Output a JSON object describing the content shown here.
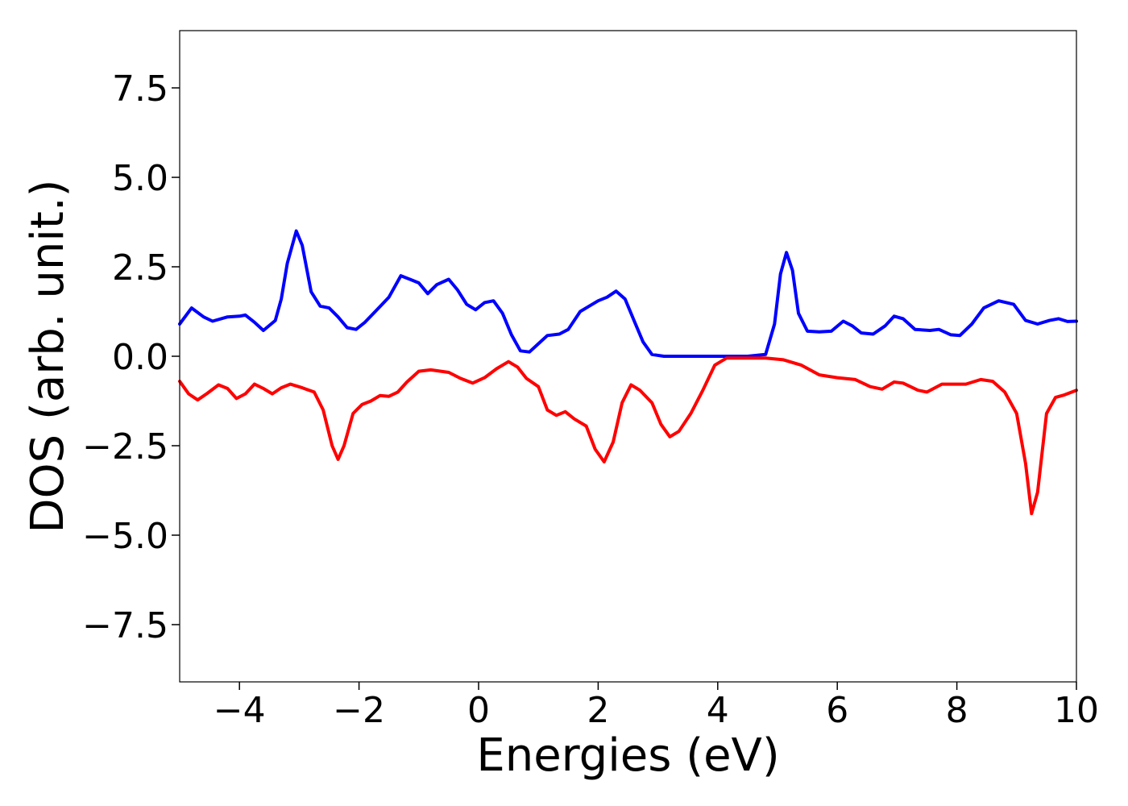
{
  "chart_data": {
    "type": "line",
    "title": "",
    "xlabel": "Energies (eV)",
    "ylabel": "DOS (arb. unit.)",
    "xlim": [
      -5,
      10
    ],
    "ylim": [
      -9.1,
      9.1
    ],
    "xticks": [
      -4,
      -2,
      0,
      2,
      4,
      6,
      8,
      10
    ],
    "xtick_labels": [
      "−4",
      "−2",
      "0",
      "2",
      "4",
      "6",
      "8",
      "10"
    ],
    "yticks": [
      7.5,
      5.0,
      2.5,
      0.0,
      -2.5,
      -5.0,
      -7.5
    ],
    "ytick_labels": [
      "7.5",
      "5.0",
      "2.5",
      "0.0",
      "−2.5",
      "−5.0",
      "−7.5"
    ],
    "grid": false,
    "legend": "none",
    "series": [
      {
        "color": "#0000ff",
        "points": [
          [
            -5.0,
            0.9
          ],
          [
            -4.8,
            1.35
          ],
          [
            -4.6,
            1.1
          ],
          [
            -4.45,
            0.98
          ],
          [
            -4.2,
            1.1
          ],
          [
            -4.0,
            1.12
          ],
          [
            -3.9,
            1.15
          ],
          [
            -3.75,
            0.95
          ],
          [
            -3.6,
            0.72
          ],
          [
            -3.4,
            1.0
          ],
          [
            -3.3,
            1.6
          ],
          [
            -3.2,
            2.6
          ],
          [
            -3.05,
            3.5
          ],
          [
            -2.95,
            3.1
          ],
          [
            -2.8,
            1.8
          ],
          [
            -2.65,
            1.4
          ],
          [
            -2.5,
            1.35
          ],
          [
            -2.35,
            1.1
          ],
          [
            -2.2,
            0.8
          ],
          [
            -2.05,
            0.75
          ],
          [
            -1.9,
            0.95
          ],
          [
            -1.7,
            1.3
          ],
          [
            -1.5,
            1.65
          ],
          [
            -1.3,
            2.25
          ],
          [
            -1.15,
            2.15
          ],
          [
            -1.0,
            2.05
          ],
          [
            -0.85,
            1.75
          ],
          [
            -0.7,
            2.0
          ],
          [
            -0.5,
            2.15
          ],
          [
            -0.35,
            1.85
          ],
          [
            -0.2,
            1.45
          ],
          [
            -0.05,
            1.3
          ],
          [
            0.1,
            1.5
          ],
          [
            0.25,
            1.55
          ],
          [
            0.4,
            1.2
          ],
          [
            0.55,
            0.6
          ],
          [
            0.7,
            0.15
          ],
          [
            0.85,
            0.12
          ],
          [
            1.0,
            0.35
          ],
          [
            1.15,
            0.58
          ],
          [
            1.35,
            0.62
          ],
          [
            1.5,
            0.75
          ],
          [
            1.7,
            1.25
          ],
          [
            1.85,
            1.4
          ],
          [
            2.0,
            1.55
          ],
          [
            2.15,
            1.65
          ],
          [
            2.3,
            1.82
          ],
          [
            2.45,
            1.6
          ],
          [
            2.6,
            1.0
          ],
          [
            2.75,
            0.4
          ],
          [
            2.9,
            0.05
          ],
          [
            3.1,
            0.0
          ],
          [
            3.5,
            0.0
          ],
          [
            4.0,
            0.0
          ],
          [
            4.5,
            0.0
          ],
          [
            4.8,
            0.05
          ],
          [
            4.95,
            0.9
          ],
          [
            5.05,
            2.3
          ],
          [
            5.15,
            2.9
          ],
          [
            5.25,
            2.4
          ],
          [
            5.35,
            1.2
          ],
          [
            5.5,
            0.7
          ],
          [
            5.7,
            0.68
          ],
          [
            5.9,
            0.7
          ],
          [
            6.1,
            0.98
          ],
          [
            6.25,
            0.85
          ],
          [
            6.4,
            0.65
          ],
          [
            6.6,
            0.62
          ],
          [
            6.8,
            0.85
          ],
          [
            6.95,
            1.12
          ],
          [
            7.1,
            1.05
          ],
          [
            7.3,
            0.75
          ],
          [
            7.55,
            0.72
          ],
          [
            7.7,
            0.75
          ],
          [
            7.9,
            0.6
          ],
          [
            8.05,
            0.58
          ],
          [
            8.25,
            0.9
          ],
          [
            8.45,
            1.35
          ],
          [
            8.7,
            1.55
          ],
          [
            8.95,
            1.45
          ],
          [
            9.15,
            1.0
          ],
          [
            9.35,
            0.9
          ],
          [
            9.55,
            1.0
          ],
          [
            9.7,
            1.05
          ],
          [
            9.85,
            0.97
          ],
          [
            10.0,
            0.98
          ]
        ]
      },
      {
        "color": "#ff0000",
        "points": [
          [
            -5.0,
            -0.7
          ],
          [
            -4.85,
            -1.05
          ],
          [
            -4.7,
            -1.22
          ],
          [
            -4.55,
            -1.05
          ],
          [
            -4.35,
            -0.8
          ],
          [
            -4.2,
            -0.9
          ],
          [
            -4.05,
            -1.18
          ],
          [
            -3.9,
            -1.05
          ],
          [
            -3.75,
            -0.78
          ],
          [
            -3.6,
            -0.9
          ],
          [
            -3.45,
            -1.05
          ],
          [
            -3.3,
            -0.88
          ],
          [
            -3.15,
            -0.78
          ],
          [
            -2.95,
            -0.88
          ],
          [
            -2.75,
            -1.0
          ],
          [
            -2.6,
            -1.5
          ],
          [
            -2.45,
            -2.5
          ],
          [
            -2.35,
            -2.88
          ],
          [
            -2.25,
            -2.5
          ],
          [
            -2.1,
            -1.6
          ],
          [
            -1.95,
            -1.35
          ],
          [
            -1.8,
            -1.25
          ],
          [
            -1.65,
            -1.1
          ],
          [
            -1.5,
            -1.12
          ],
          [
            -1.35,
            -1.0
          ],
          [
            -1.2,
            -0.72
          ],
          [
            -1.0,
            -0.42
          ],
          [
            -0.8,
            -0.38
          ],
          [
            -0.5,
            -0.45
          ],
          [
            -0.3,
            -0.62
          ],
          [
            -0.1,
            -0.75
          ],
          [
            0.1,
            -0.6
          ],
          [
            0.3,
            -0.35
          ],
          [
            0.5,
            -0.15
          ],
          [
            0.65,
            -0.3
          ],
          [
            0.8,
            -0.62
          ],
          [
            1.0,
            -0.85
          ],
          [
            1.15,
            -1.5
          ],
          [
            1.3,
            -1.65
          ],
          [
            1.45,
            -1.55
          ],
          [
            1.6,
            -1.75
          ],
          [
            1.8,
            -1.95
          ],
          [
            1.95,
            -2.6
          ],
          [
            2.1,
            -2.95
          ],
          [
            2.25,
            -2.4
          ],
          [
            2.4,
            -1.3
          ],
          [
            2.55,
            -0.8
          ],
          [
            2.7,
            -0.95
          ],
          [
            2.9,
            -1.3
          ],
          [
            3.05,
            -1.9
          ],
          [
            3.2,
            -2.25
          ],
          [
            3.35,
            -2.1
          ],
          [
            3.55,
            -1.6
          ],
          [
            3.75,
            -0.95
          ],
          [
            3.95,
            -0.25
          ],
          [
            4.15,
            -0.05
          ],
          [
            4.5,
            -0.05
          ],
          [
            4.8,
            -0.05
          ],
          [
            5.1,
            -0.1
          ],
          [
            5.4,
            -0.25
          ],
          [
            5.7,
            -0.52
          ],
          [
            6.0,
            -0.6
          ],
          [
            6.3,
            -0.65
          ],
          [
            6.55,
            -0.85
          ],
          [
            6.75,
            -0.92
          ],
          [
            6.95,
            -0.72
          ],
          [
            7.1,
            -0.75
          ],
          [
            7.35,
            -0.95
          ],
          [
            7.5,
            -1.0
          ],
          [
            7.75,
            -0.78
          ],
          [
            7.95,
            -0.78
          ],
          [
            8.15,
            -0.78
          ],
          [
            8.4,
            -0.65
          ],
          [
            8.6,
            -0.7
          ],
          [
            8.8,
            -1.0
          ],
          [
            9.0,
            -1.6
          ],
          [
            9.15,
            -3.0
          ],
          [
            9.25,
            -4.4
          ],
          [
            9.35,
            -3.8
          ],
          [
            9.5,
            -1.6
          ],
          [
            9.65,
            -1.15
          ],
          [
            9.8,
            -1.08
          ],
          [
            10.0,
            -0.95
          ]
        ]
      }
    ]
  }
}
